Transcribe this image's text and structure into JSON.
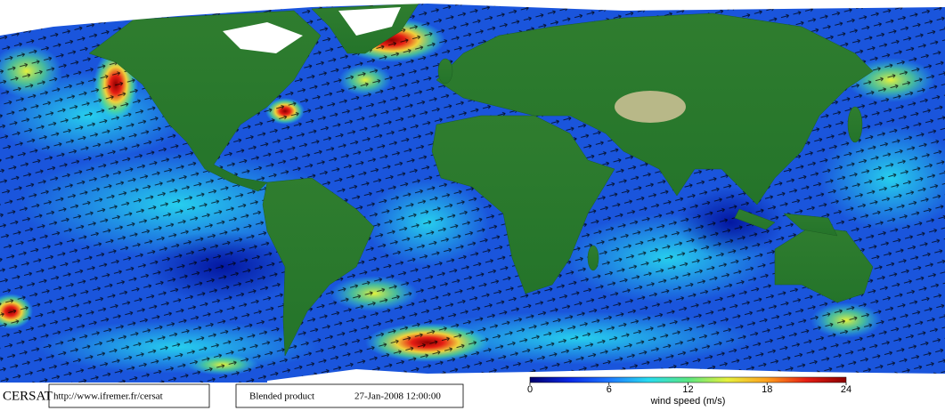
{
  "footer": {
    "brand": "CERSAT",
    "url": "http://www.ifremer.fr/cersat",
    "product": "Blended product",
    "date": "27-Jan-2008 12:00:00"
  },
  "colorbar": {
    "label": "wind speed (m/s)",
    "lim": [
      0,
      24
    ],
    "ticks": [
      0,
      6,
      12,
      18,
      24
    ],
    "colormap": [
      "#00006e",
      "#0a28e6",
      "#1e78ff",
      "#28dcf0",
      "#5ae682",
      "#e6f03c",
      "#ffa01e",
      "#e61e14",
      "#8c0000"
    ]
  }
}
